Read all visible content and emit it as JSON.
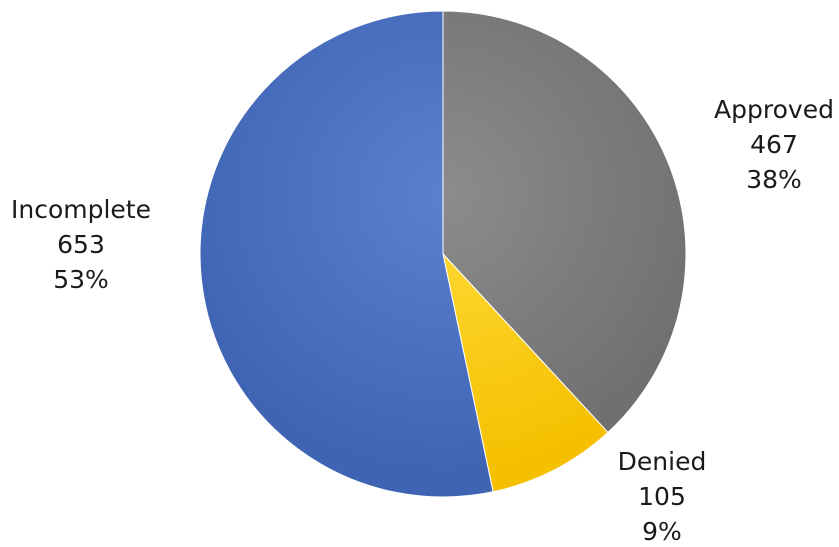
{
  "chart_data": {
    "type": "pie",
    "title": "",
    "legend": "none",
    "slices": [
      {
        "label": "Approved",
        "value": 467,
        "percent": "38%",
        "color": "#6f6f6f",
        "color_light": "#8c8c8c"
      },
      {
        "label": "Denied",
        "value": 105,
        "percent": "9%",
        "color": "#f5c000",
        "color_light": "#ffdc3a"
      },
      {
        "label": "Incomplete",
        "value": 653,
        "percent": "53%",
        "color": "#3f64b4",
        "color_light": "#5b80cf"
      }
    ]
  }
}
